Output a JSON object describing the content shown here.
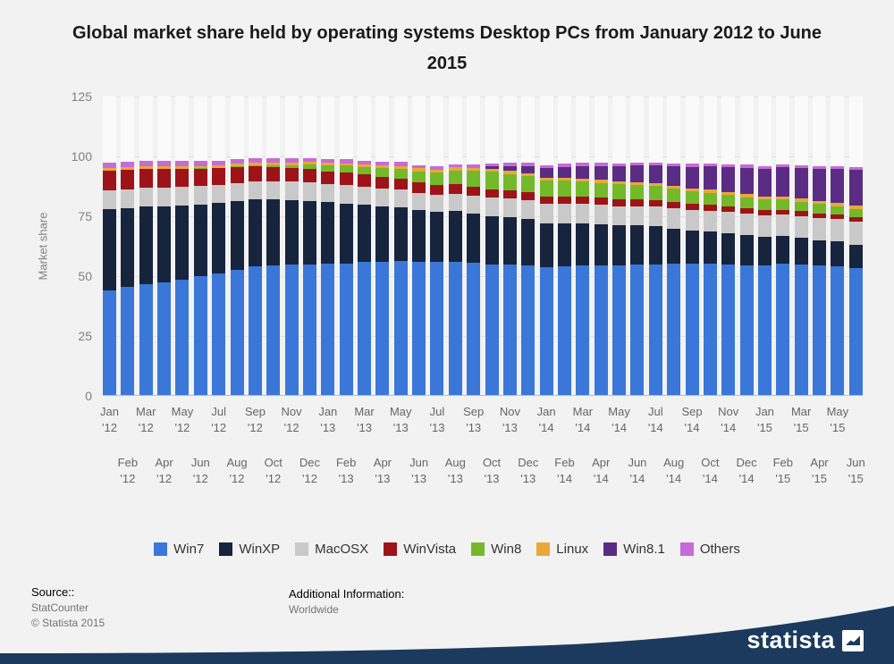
{
  "title": "Global market share held by operating systems Desktop PCs from January 2012 to June 2015",
  "y_axis": {
    "label": "Market share",
    "ticks": [
      0,
      25,
      50,
      75,
      100,
      125
    ]
  },
  "chart_data": {
    "type": "bar",
    "stacked": true,
    "title": "Global market share held by operating systems Desktop PCs from January 2012 to June 2015",
    "xlabel": "",
    "ylabel": "Market share",
    "ylim": [
      0,
      125
    ],
    "grid": true,
    "legend_position": "bottom",
    "categories": [
      "Jan '12",
      "Feb '12",
      "Mar '12",
      "Apr '12",
      "May '12",
      "Jun '12",
      "Jul '12",
      "Aug '12",
      "Sep '12",
      "Oct '12",
      "Nov '12",
      "Dec '12",
      "Jan '13",
      "Feb '13",
      "Mar '13",
      "Apr '13",
      "May '13",
      "Jun '13",
      "Jul '13",
      "Aug '13",
      "Sep '13",
      "Oct '13",
      "Nov '13",
      "Dec '13",
      "Jan '14",
      "Feb '14",
      "Mar '14",
      "Apr '14",
      "May '14",
      "Jun '14",
      "Jul '14",
      "Aug '14",
      "Sep '14",
      "Oct '14",
      "Nov '14",
      "Dec '14",
      "Jan '15",
      "Feb '15",
      "Mar '15",
      "Apr '15",
      "May '15",
      "Jun '15"
    ],
    "series": [
      {
        "name": "Win7",
        "color": "#3a77d9",
        "values": [
          44,
          45.5,
          46.5,
          47.5,
          48.5,
          50,
          51,
          52.5,
          54,
          54.5,
          54.8,
          55,
          55.3,
          55.3,
          55.8,
          56.1,
          56.2,
          56,
          55.8,
          55.9,
          55.5,
          54.9,
          54.8,
          54.6,
          53.6,
          54,
          54.4,
          54.4,
          54.3,
          54.9,
          55,
          55.1,
          55.2,
          55.3,
          55,
          54.6,
          54.6,
          55.2,
          54.7,
          54.3,
          54,
          53.2
        ]
      },
      {
        "name": "WinXP",
        "color": "#16243d",
        "values": [
          34,
          33,
          32.5,
          31.5,
          31,
          30,
          29.5,
          29,
          28,
          27.5,
          27,
          26.5,
          25.5,
          25,
          24,
          23,
          22.5,
          21.5,
          21,
          21.2,
          20.6,
          20.2,
          19.8,
          19.2,
          18.6,
          18.2,
          17.8,
          17.2,
          16.8,
          16.2,
          15.8,
          14.8,
          13.8,
          13.2,
          12.8,
          12.5,
          12,
          11.6,
          11.2,
          10.8,
          10.4,
          10
        ]
      },
      {
        "name": "MacOSX",
        "color": "#c9c9c9",
        "values": [
          7.7,
          7.8,
          7.9,
          7.9,
          7.8,
          7.7,
          7.6,
          7.5,
          7.4,
          7.5,
          7.6,
          7.7,
          7.6,
          7.7,
          7.6,
          7.5,
          7.4,
          7.3,
          7.2,
          7.3,
          7.4,
          7.6,
          7.8,
          7.9,
          7.9,
          8,
          8,
          8.1,
          8.2,
          8.2,
          8.3,
          8.5,
          8.6,
          8.8,
          8.9,
          9,
          8.9,
          9,
          9.2,
          9.3,
          9.4,
          9.5
        ]
      },
      {
        "name": "WinVista",
        "color": "#9e1318",
        "values": [
          8.4,
          8.2,
          8,
          7.8,
          7.5,
          7.2,
          7,
          6.7,
          6.4,
          6.1,
          5.8,
          5.6,
          5.4,
          5.2,
          5,
          4.8,
          4.6,
          4.4,
          4.2,
          4,
          3.8,
          3.6,
          3.5,
          3.4,
          3.3,
          3.2,
          3.1,
          3,
          2.9,
          2.8,
          2.7,
          2.6,
          2.5,
          2.4,
          2.3,
          2.2,
          2.1,
          2,
          2,
          1.9,
          1.9,
          1.8
        ]
      },
      {
        "name": "Win8",
        "color": "#74b929",
        "values": [
          0,
          0,
          0,
          0,
          0,
          0.1,
          0.2,
          0.3,
          0.5,
          0.8,
          1.2,
          1.8,
          2.4,
          2.9,
          3.3,
          3.8,
          4.2,
          4.6,
          5.1,
          5.8,
          6.6,
          7.2,
          6.8,
          6.6,
          6.6,
          6.4,
          6.3,
          6.2,
          6.1,
          5.9,
          5.8,
          5.6,
          5.3,
          5.1,
          4.9,
          4.7,
          4.4,
          4.2,
          4,
          3.8,
          3.6,
          3.4
        ]
      },
      {
        "name": "Linux",
        "color": "#eaa838",
        "values": [
          1.1,
          1.1,
          1.1,
          1.1,
          1.1,
          1.1,
          1.1,
          1.1,
          1.1,
          1.1,
          1.1,
          1.1,
          1.1,
          1.1,
          1.1,
          1.1,
          1.2,
          1.2,
          1.2,
          1.2,
          1.2,
          1.2,
          1.2,
          1.2,
          1.2,
          1.2,
          1.2,
          1.3,
          1.3,
          1.3,
          1.3,
          1.3,
          1.3,
          1.3,
          1.3,
          1.3,
          1.3,
          1.3,
          1.3,
          1.4,
          1.5,
          1.6
        ]
      },
      {
        "name": "Win8.1",
        "color": "#5b2c83",
        "values": [
          0,
          0,
          0,
          0,
          0,
          0,
          0,
          0,
          0,
          0,
          0,
          0,
          0,
          0,
          0,
          0,
          0,
          0,
          0,
          0,
          0,
          1.2,
          2.2,
          3.1,
          3.9,
          4.6,
          5.2,
          5.9,
          6.4,
          7,
          7.5,
          8.1,
          9,
          9.7,
          10.4,
          11,
          11.5,
          12.1,
          12.8,
          13.4,
          14,
          14.8
        ]
      },
      {
        "name": "Others",
        "color": "#c76bd6",
        "values": [
          2.4,
          2.3,
          2.2,
          2.2,
          2.1,
          2,
          1.9,
          1.9,
          1.8,
          1.8,
          1.7,
          1.7,
          1.6,
          1.6,
          1.5,
          1.5,
          1.5,
          1.4,
          1.4,
          1.4,
          1.4,
          1.3,
          1.3,
          1.3,
          1.3,
          1.3,
          1.3,
          1.2,
          1.2,
          1.2,
          1.2,
          1.2,
          1.2,
          1.2,
          1.2,
          1.2,
          1.2,
          1.2,
          1.2,
          1.2,
          1.3,
          1.3
        ]
      }
    ]
  },
  "footer": {
    "source_label": "Source::",
    "source_name": "StatCounter",
    "copyright": "© Statista 2015",
    "additional_label": "Additional Information:",
    "additional_value": "Worldwide",
    "brand": "statista"
  }
}
